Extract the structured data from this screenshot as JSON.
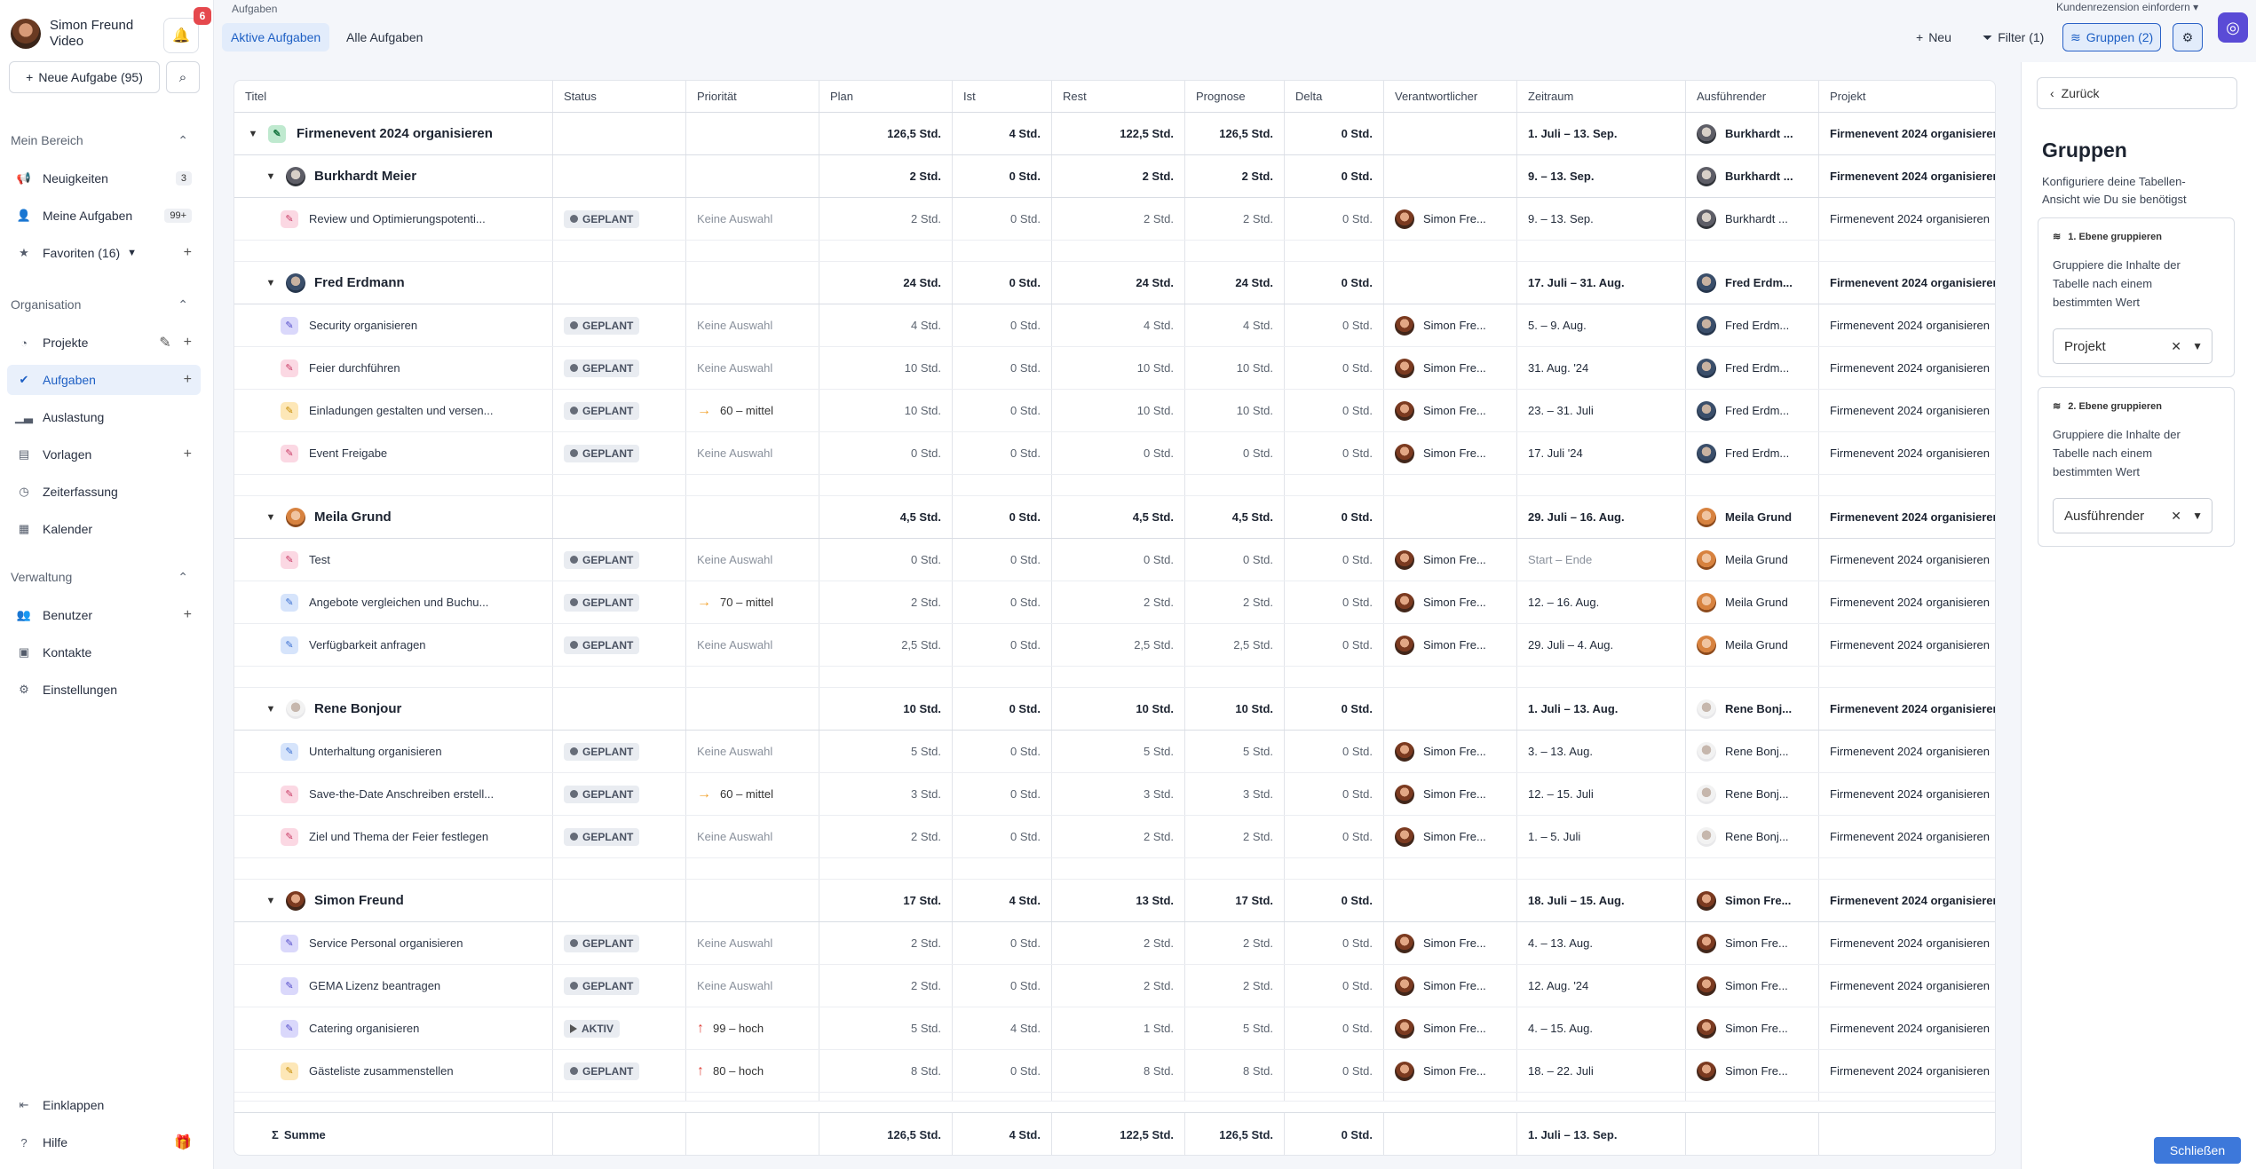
{
  "user": {
    "name": "Simon Freund",
    "role": "Video",
    "notifications": "6"
  },
  "sidebar": {
    "new_task": "Neue Aufgabe (95)",
    "sections": [
      {
        "title": "Mein Bereich",
        "items": [
          {
            "label": "Neuigkeiten",
            "icon": "megaphone-icon",
            "count": "3"
          },
          {
            "label": "Meine Aufgaben",
            "icon": "person-icon",
            "count": "99+"
          },
          {
            "label": "Favoriten (16)",
            "icon": "star-icon"
          }
        ]
      },
      {
        "title": "Organisation",
        "items": [
          {
            "label": "Projekte",
            "icon": "pie-chart-icon"
          },
          {
            "label": "Aufgaben",
            "icon": "check-circle-icon"
          },
          {
            "label": "Auslastung",
            "icon": "chart-icon"
          },
          {
            "label": "Vorlagen",
            "icon": "template-icon"
          },
          {
            "label": "Zeiterfassung",
            "icon": "clock-icon"
          },
          {
            "label": "Kalender",
            "icon": "calendar-icon"
          }
        ]
      },
      {
        "title": "Verwaltung",
        "items": [
          {
            "label": "Benutzer",
            "icon": "users-icon"
          },
          {
            "label": "Kontakte",
            "icon": "contacts-icon"
          },
          {
            "label": "Einstellungen",
            "icon": "settings-icon"
          }
        ]
      }
    ],
    "collapse": "Einklappen",
    "help": "Hilfe"
  },
  "header": {
    "breadcrumb": "Aufgaben",
    "tab_active": "Aktive Aufgaben",
    "tab_all": "Alle Aufgaben",
    "new": "Neu",
    "filter": "Filter (1)",
    "groups": "Gruppen (2)",
    "review": "Kundenrezension einfordern"
  },
  "table": {
    "columns": [
      "Titel",
      "Status",
      "Priorität",
      "Plan",
      "Ist",
      "Rest",
      "Prognose",
      "Delta",
      "Verantwortlicher",
      "Zeitraum",
      "Ausführender",
      "Projekt"
    ],
    "project_group": {
      "title": "Firmenevent 2024 organisieren",
      "plan": "126,5 Std.",
      "ist": "4 Std.",
      "rest": "122,5 Std.",
      "prognose": "126,5 Std.",
      "delta": "0 Std.",
      "zeitraum": "1. Juli – 13. Sep.",
      "ausfuehrender": "Burkhardt ...",
      "projekt": "Firmenevent 2024 organisieren"
    },
    "groups": [
      {
        "name": "Burkhardt Meier",
        "face": "bm",
        "exec": "Burkhardt ...",
        "plan": "2 Std.",
        "ist": "0 Std.",
        "rest": "2 Std.",
        "prognose": "2 Std.",
        "delta": "0 Std.",
        "zeitraum": "9. – 13. Sep.",
        "tasks": [
          {
            "title": "Review und Optimierungspotenti...",
            "color": "pink",
            "status": "GEPLANT",
            "prio": "Keine Auswahl",
            "plan": "2 Std.",
            "ist": "0 Std.",
            "rest": "2 Std.",
            "prognose": "2 Std.",
            "delta": "0 Std.",
            "verantw": "Simon Fre...",
            "zeitraum": "9. – 13. Sep."
          }
        ]
      },
      {
        "name": "Fred Erdmann",
        "face": "fe",
        "exec": "Fred Erdm...",
        "plan": "24 Std.",
        "ist": "0 Std.",
        "rest": "24 Std.",
        "prognose": "24 Std.",
        "delta": "0 Std.",
        "zeitraum": "17. Juli – 31. Aug.",
        "tasks": [
          {
            "title": "Security organisieren",
            "color": "purple",
            "status": "GEPLANT",
            "prio": "Keine Auswahl",
            "plan": "4 Std.",
            "ist": "0 Std.",
            "rest": "4 Std.",
            "prognose": "4 Std.",
            "delta": "0 Std.",
            "verantw": "Simon Fre...",
            "zeitraum": "5. – 9. Aug."
          },
          {
            "title": "Feier durchführen",
            "color": "pink",
            "status": "GEPLANT",
            "prio": "Keine Auswahl",
            "plan": "10 Std.",
            "ist": "0 Std.",
            "rest": "10 Std.",
            "prognose": "10 Std.",
            "delta": "0 Std.",
            "verantw": "Simon Fre...",
            "zeitraum": "31. Aug. '24"
          },
          {
            "title": "Einladungen gestalten und versen...",
            "color": "yellow",
            "status": "GEPLANT",
            "prio": "60 – mittel",
            "prioType": "mid",
            "plan": "10 Std.",
            "ist": "0 Std.",
            "rest": "10 Std.",
            "prognose": "10 Std.",
            "delta": "0 Std.",
            "verantw": "Simon Fre...",
            "zeitraum": "23. – 31. Juli"
          },
          {
            "title": "Event Freigabe",
            "color": "pink",
            "status": "GEPLANT",
            "prio": "Keine Auswahl",
            "plan": "0 Std.",
            "ist": "0 Std.",
            "rest": "0 Std.",
            "prognose": "0 Std.",
            "delta": "0 Std.",
            "verantw": "Simon Fre...",
            "zeitraum": "17. Juli '24"
          }
        ]
      },
      {
        "name": "Meila Grund",
        "face": "mg",
        "exec": "Meila Grund",
        "plan": "4,5 Std.",
        "ist": "0 Std.",
        "rest": "4,5 Std.",
        "prognose": "4,5 Std.",
        "delta": "0 Std.",
        "zeitraum": "29. Juli – 16. Aug.",
        "tasks": [
          {
            "title": "Test",
            "color": "pink",
            "status": "GEPLANT",
            "prio": "Keine Auswahl",
            "plan": "0 Std.",
            "ist": "0 Std.",
            "rest": "0 Std.",
            "prognose": "0 Std.",
            "delta": "0 Std.",
            "verantw": "Simon Fre...",
            "zeitraum": "Start – Ende",
            "zmuted": true
          },
          {
            "title": "Angebote vergleichen und Buchu...",
            "color": "blue",
            "status": "GEPLANT",
            "prio": "70 – mittel",
            "prioType": "mid",
            "plan": "2 Std.",
            "ist": "0 Std.",
            "rest": "2 Std.",
            "prognose": "2 Std.",
            "delta": "0 Std.",
            "verantw": "Simon Fre...",
            "zeitraum": "12. – 16. Aug."
          },
          {
            "title": "Verfügbarkeit anfragen",
            "color": "blue",
            "status": "GEPLANT",
            "prio": "Keine Auswahl",
            "plan": "2,5 Std.",
            "ist": "0 Std.",
            "rest": "2,5 Std.",
            "prognose": "2,5 Std.",
            "delta": "0 Std.",
            "verantw": "Simon Fre...",
            "zeitraum": "29. Juli – 4. Aug."
          }
        ]
      },
      {
        "name": "Rene Bonjour",
        "face": "rb",
        "exec": "Rene Bonj...",
        "plan": "10 Std.",
        "ist": "0 Std.",
        "rest": "10 Std.",
        "prognose": "10 Std.",
        "delta": "0 Std.",
        "zeitraum": "1. Juli – 13. Aug.",
        "tasks": [
          {
            "title": "Unterhaltung organisieren",
            "color": "blue",
            "status": "GEPLANT",
            "prio": "Keine Auswahl",
            "plan": "5 Std.",
            "ist": "0 Std.",
            "rest": "5 Std.",
            "prognose": "5 Std.",
            "delta": "0 Std.",
            "verantw": "Simon Fre...",
            "zeitraum": "3. – 13. Aug."
          },
          {
            "title": "Save-the-Date Anschreiben erstell...",
            "color": "pink",
            "status": "GEPLANT",
            "prio": "60 – mittel",
            "prioType": "mid",
            "plan": "3 Std.",
            "ist": "0 Std.",
            "rest": "3 Std.",
            "prognose": "3 Std.",
            "delta": "0 Std.",
            "verantw": "Simon Fre...",
            "zeitraum": "12. – 15. Juli"
          },
          {
            "title": "Ziel und Thema der Feier festlegen",
            "color": "pink",
            "status": "GEPLANT",
            "prio": "Keine Auswahl",
            "plan": "2 Std.",
            "ist": "0 Std.",
            "rest": "2 Std.",
            "prognose": "2 Std.",
            "delta": "0 Std.",
            "verantw": "Simon Fre...",
            "zeitraum": "1. – 5. Juli"
          }
        ]
      },
      {
        "name": "Simon Freund",
        "face": "sf",
        "exec": "Simon Fre...",
        "plan": "17 Std.",
        "ist": "4 Std.",
        "rest": "13 Std.",
        "prognose": "17 Std.",
        "delta": "0 Std.",
        "zeitraum": "18. Juli – 15. Aug.",
        "tasks": [
          {
            "title": "Service Personal organisieren",
            "color": "purple",
            "status": "GEPLANT",
            "prio": "Keine Auswahl",
            "plan": "2 Std.",
            "ist": "0 Std.",
            "rest": "2 Std.",
            "prognose": "2 Std.",
            "delta": "0 Std.",
            "verantw": "Simon Fre...",
            "zeitraum": "4. – 13. Aug."
          },
          {
            "title": "GEMA Lizenz beantragen",
            "color": "purple",
            "status": "GEPLANT",
            "prio": "Keine Auswahl",
            "plan": "2 Std.",
            "ist": "0 Std.",
            "rest": "2 Std.",
            "prognose": "2 Std.",
            "delta": "0 Std.",
            "verantw": "Simon Fre...",
            "zeitraum": "12. Aug. '24"
          },
          {
            "title": "Catering organisieren",
            "color": "purple",
            "status": "AKTIV",
            "prio": "99 – hoch",
            "prioType": "high",
            "plan": "5 Std.",
            "ist": "4 Std.",
            "rest": "1 Std.",
            "prognose": "5 Std.",
            "delta": "0 Std.",
            "verantw": "Simon Fre...",
            "zeitraum": "4. – 15. Aug."
          },
          {
            "title": "Gästeliste zusammenstellen",
            "color": "yellow",
            "status": "GEPLANT",
            "prio": "80 – hoch",
            "prioType": "high",
            "plan": "8 Std.",
            "ist": "0 Std.",
            "rest": "8 Std.",
            "prognose": "8 Std.",
            "delta": "0 Std.",
            "verantw": "Simon Fre...",
            "zeitraum": "18. – 22. Juli"
          }
        ]
      }
    ],
    "sum": {
      "label": "Summe",
      "plan": "126,5 Std.",
      "ist": "4 Std.",
      "rest": "122,5 Std.",
      "prognose": "126,5 Std.",
      "delta": "0 Std.",
      "zeitraum": "1. Juli – 13. Sep."
    }
  },
  "panel": {
    "back": "Zurück",
    "title": "Gruppen",
    "desc": "Konfiguriere deine Tabellen-Ansicht wie Du sie benötigst",
    "levels": [
      {
        "head": "1. Ebene gruppieren",
        "text": "Gruppiere die Inhalte der Tabelle nach einem bestimmten Wert",
        "value": "Projekt"
      },
      {
        "head": "2. Ebene gruppieren",
        "text": "Gruppiere die Inhalte der Tabelle nach einem bestimmten Wert",
        "value": "Ausführender"
      }
    ],
    "close": "Schließen"
  }
}
